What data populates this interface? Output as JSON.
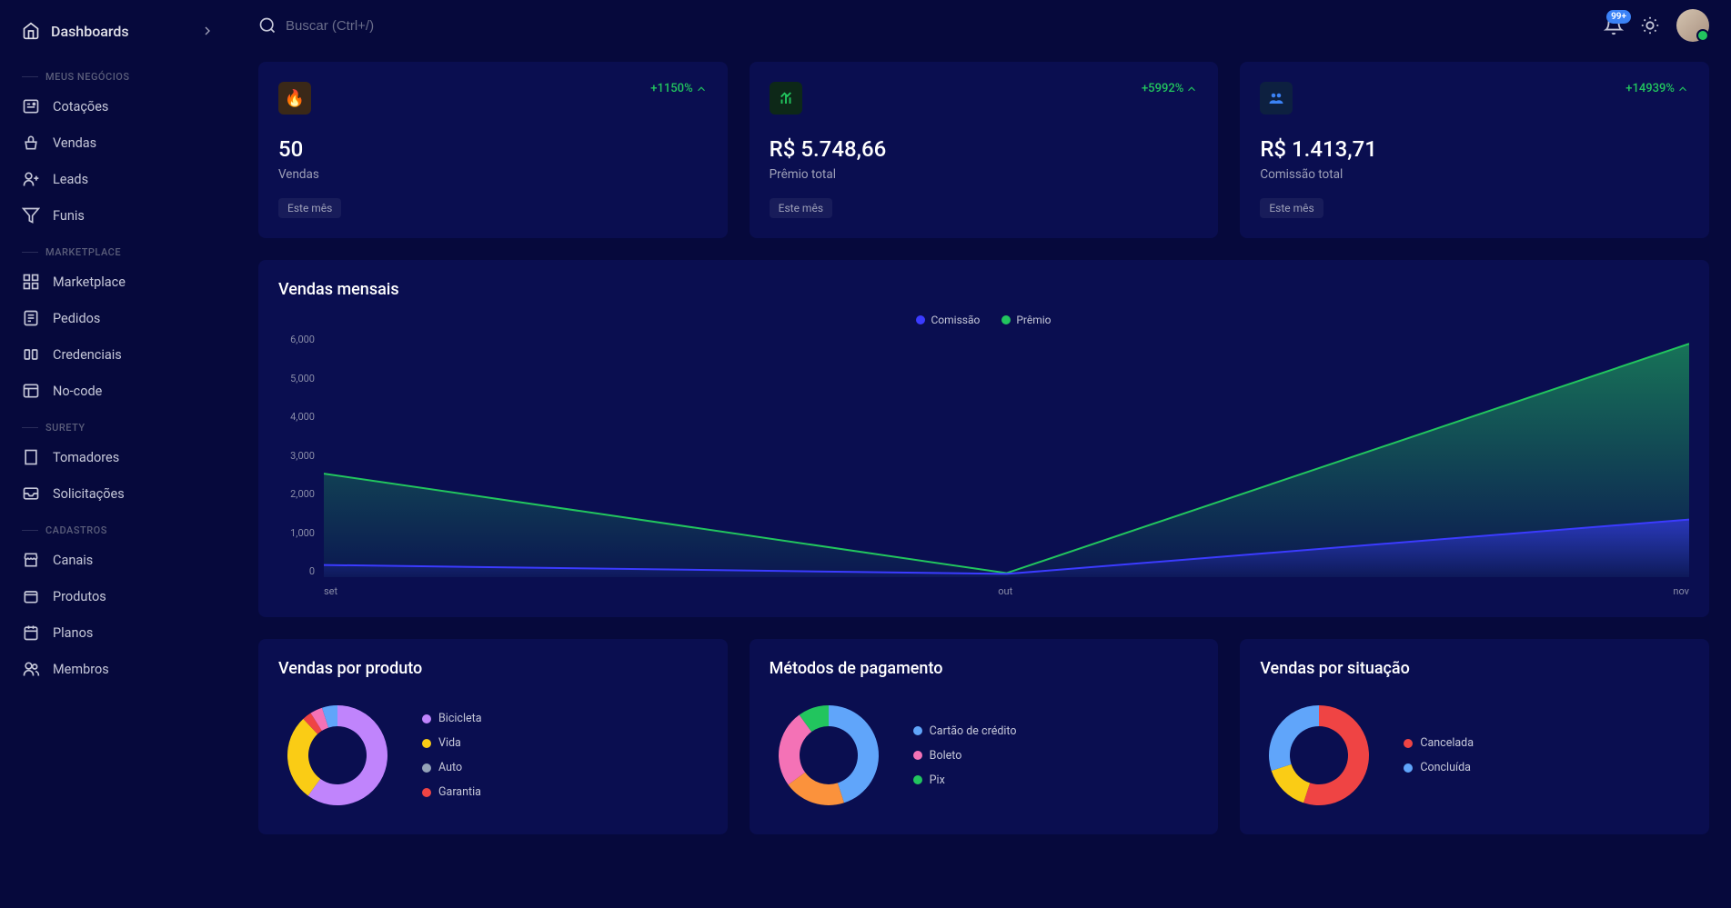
{
  "sidebar": {
    "title": "Dashboards",
    "sections": [
      {
        "label": "MEUS NEGÓCIOS",
        "items": [
          {
            "label": "Cotações",
            "icon": "quote"
          },
          {
            "label": "Vendas",
            "icon": "basket"
          },
          {
            "label": "Leads",
            "icon": "person-plus"
          },
          {
            "label": "Funis",
            "icon": "funnel"
          }
        ]
      },
      {
        "label": "MARKETPLACE",
        "items": [
          {
            "label": "Marketplace",
            "icon": "grid"
          },
          {
            "label": "Pedidos",
            "icon": "receipt"
          },
          {
            "label": "Credenciais",
            "icon": "key"
          },
          {
            "label": "No-code",
            "icon": "layout"
          }
        ]
      },
      {
        "label": "SURETY",
        "items": [
          {
            "label": "Tomadores",
            "icon": "building"
          },
          {
            "label": "Solicitações",
            "icon": "inbox"
          }
        ]
      },
      {
        "label": "CADASTROS",
        "items": [
          {
            "label": "Canais",
            "icon": "store"
          },
          {
            "label": "Produtos",
            "icon": "package"
          },
          {
            "label": "Planos",
            "icon": "calendar"
          },
          {
            "label": "Membros",
            "icon": "users"
          }
        ]
      }
    ]
  },
  "topbar": {
    "search_placeholder": "Buscar (Ctrl+/)",
    "notification_badge": "99+"
  },
  "stats": [
    {
      "change": "+1150%",
      "value": "50",
      "label": "Vendas",
      "chip": "Este mês",
      "icon_bg": "#3a2818",
      "icon": "🔥"
    },
    {
      "change": "+5992%",
      "value": "R$ 5.748,66",
      "label": "Prêmio total",
      "chip": "Este mês",
      "icon_bg": "#0d2818",
      "icon": "chart-green"
    },
    {
      "change": "+14939%",
      "value": "R$ 1.413,71",
      "label": "Comissão total",
      "chip": "Este mês",
      "icon_bg": "#0d2040",
      "icon": "users-blue"
    }
  ],
  "area_chart": {
    "title": "Vendas mensais",
    "series": [
      {
        "name": "Comissão",
        "color": "#3b3bff"
      },
      {
        "name": "Prêmio",
        "color": "#22c55e"
      }
    ],
    "y_ticks": [
      "6,000",
      "5,000",
      "4,000",
      "3,000",
      "2,000",
      "1,000",
      "0"
    ],
    "x_ticks": [
      "set",
      "out",
      "nov"
    ],
    "y_max": 6000,
    "premio_values": [
      2550,
      100,
      5750
    ],
    "comissao_values": [
      300,
      80,
      1420
    ],
    "bg": "#0a0e50",
    "area_premio_top": "#22c55e",
    "area_premio_fill": "rgba(34,197,94,0.35)",
    "area_comissao_top": "#3b3bff",
    "area_comissao_fill": "rgba(59,59,255,0.4)"
  },
  "donuts": [
    {
      "title": "Vendas por produto",
      "legend": [
        {
          "label": "Bicicleta",
          "color": "#c084fc"
        },
        {
          "label": "Vida",
          "color": "#facc15"
        },
        {
          "label": "Auto",
          "color": "#94a3b8"
        },
        {
          "label": "Garantia",
          "color": "#ef4444"
        }
      ],
      "slices": [
        {
          "color": "#c084fc",
          "value": 60
        },
        {
          "color": "#facc15",
          "value": 28
        },
        {
          "color": "#ef4444",
          "value": 3
        },
        {
          "color": "#f472b6",
          "value": 4
        },
        {
          "color": "#60a5fa",
          "value": 5
        }
      ]
    },
    {
      "title": "Métodos de pagamento",
      "legend": [
        {
          "label": "Cartão de crédito",
          "color": "#60a5fa"
        },
        {
          "label": "Boleto",
          "color": "#f472b6"
        },
        {
          "label": "Pix",
          "color": "#22c55e"
        }
      ],
      "slices": [
        {
          "color": "#60a5fa",
          "value": 45
        },
        {
          "color": "#fb923c",
          "value": 20
        },
        {
          "color": "#f472b6",
          "value": 25
        },
        {
          "color": "#22c55e",
          "value": 10
        }
      ]
    },
    {
      "title": "Vendas por situação",
      "legend": [
        {
          "label": "Cancelada",
          "color": "#ef4444"
        },
        {
          "label": "Concluída",
          "color": "#60a5fa"
        }
      ],
      "slices": [
        {
          "color": "#ef4444",
          "value": 55
        },
        {
          "color": "#facc15",
          "value": 15
        },
        {
          "color": "#60a5fa",
          "value": 30
        }
      ]
    }
  ]
}
